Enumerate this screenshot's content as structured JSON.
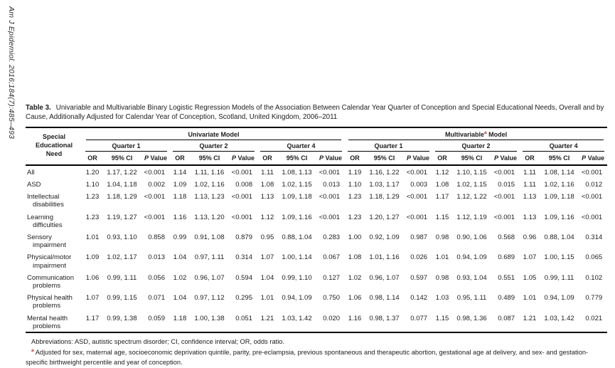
{
  "page": {
    "background_color": "#ffffff",
    "text_color": "#1c1c1c",
    "footnote_marker_color": "#a93226"
  },
  "sidebar": {
    "citation": "Am J Epidemiol. 2016;184(7):485–493"
  },
  "table": {
    "label": "Table 3.",
    "title": "Univariable and Multivariable Binary Logistic Regression Models of the Association Between Calendar Year Quarter of Conception and Special Educational Needs, Overall and by Cause, Additionally Adjusted for Calendar Year of Conception, Scotland, United Kingdom, 2006–2011",
    "stub_header": "Special Educational Need",
    "model_headers": [
      {
        "text": "Univariate Model",
        "sup": "",
        "text_after": ""
      },
      {
        "text": "Multivariable",
        "sup": "a",
        "text_after": " Model"
      }
    ],
    "quarter_headers": [
      "Quarter 1",
      "Quarter 2",
      "Quarter 4"
    ],
    "column_headers": [
      {
        "label": "OR",
        "italic_first_word": false
      },
      {
        "label": "95% CI",
        "italic_first_word": false
      },
      {
        "label": "P Value",
        "italic_first_word": true
      }
    ],
    "rows": [
      {
        "label": "All",
        "values": [
          "1.20",
          "1.17, 1.22",
          "<0.001",
          "1.14",
          "1.11, 1.16",
          "<0.001",
          "1.11",
          "1.08, 1.13",
          "<0.001",
          "1.19",
          "1.16, 1.22",
          "<0.001",
          "1.12",
          "1.10, 1.15",
          "<0.001",
          "1.11",
          "1.08, 1.14",
          "<0.001"
        ]
      },
      {
        "label": "ASD",
        "values": [
          "1.10",
          "1.04, 1.18",
          "0.002",
          "1.09",
          "1.02, 1.16",
          "0.008",
          "1.08",
          "1.02, 1.15",
          "0.013",
          "1.10",
          "1.03, 1.17",
          "0.003",
          "1.08",
          "1.02, 1.15",
          "0.015",
          "1.11",
          "1.02, 1.16",
          "0.012"
        ]
      },
      {
        "label": "Intellectual disabilities",
        "values": [
          "1.23",
          "1.18, 1.29",
          "<0.001",
          "1.18",
          "1.13, 1.23",
          "<0.001",
          "1.13",
          "1.09, 1.18",
          "<0.001",
          "1.23",
          "1.18, 1.29",
          "<0.001",
          "1.17",
          "1.12, 1.22",
          "<0.001",
          "1.13",
          "1.09, 1.18",
          "<0.001"
        ]
      },
      {
        "label": "Learning difficulties",
        "values": [
          "1.23",
          "1.19, 1.27",
          "<0.001",
          "1.16",
          "1.13, 1.20",
          "<0.001",
          "1.12",
          "1.09, 1.16",
          "<0.001",
          "1.23",
          "1.20, 1.27",
          "<0.001",
          "1.15",
          "1.12, 1.19",
          "<0.001",
          "1.13",
          "1.09, 1.16",
          "<0.001"
        ]
      },
      {
        "label": "Sensory impairment",
        "values": [
          "1.01",
          "0.93, 1.10",
          "0.858",
          "0.99",
          "0.91, 1.08",
          "0.879",
          "0.95",
          "0.88, 1.04",
          "0.283",
          "1.00",
          "0.92, 1.09",
          "0.987",
          "0.98",
          "0.90, 1.06",
          "0.568",
          "0.96",
          "0.88, 1.04",
          "0.314"
        ]
      },
      {
        "label": "Physical/motor impairment",
        "values": [
          "1.09",
          "1.02, 1.17",
          "0.013",
          "1.04",
          "0.97, 1.11",
          "0.314",
          "1.07",
          "1.00, 1.14",
          "0.067",
          "1.08",
          "1.01, 1.16",
          "0.026",
          "1.01",
          "0.94, 1.09",
          "0.689",
          "1.07",
          "1.00, 1.15",
          "0.065"
        ]
      },
      {
        "label": "Communication problems",
        "values": [
          "1.06",
          "0.99, 1.11",
          "0.056",
          "1.02",
          "0.96, 1.07",
          "0.594",
          "1.04",
          "0.99, 1.10",
          "0.127",
          "1.02",
          "0.96, 1.07",
          "0.597",
          "0.98",
          "0.93, 1.04",
          "0.551",
          "1.05",
          "0.99, 1.11",
          "0.102"
        ]
      },
      {
        "label": "Physical health problems",
        "values": [
          "1.07",
          "0.99, 1.15",
          "0.071",
          "1.04",
          "0.97, 1.12",
          "0.295",
          "1.01",
          "0.94, 1.09",
          "0.750",
          "1.06",
          "0.98, 1.14",
          "0.142",
          "1.03",
          "0.95, 1.11",
          "0.489",
          "1.01",
          "0.94, 1.09",
          "0.779"
        ]
      },
      {
        "label": "Mental health problems",
        "values": [
          "1.17",
          "0.99, 1.38",
          "0.059",
          "1.18",
          "1.00, 1.38",
          "0.051",
          "1.21",
          "1.03, 1.42",
          "0.020",
          "1.16",
          "0.98, 1.37",
          "0.077",
          "1.15",
          "0.98, 1.36",
          "0.087",
          "1.21",
          "1.03, 1.42",
          "0.021"
        ]
      }
    ]
  },
  "footnotes": {
    "abbreviations": "Abbreviations: ASD, autistic spectrum disorder; CI, confidence interval; OR, odds ratio.",
    "adjustment_sup": "a",
    "adjustment": "Adjusted for sex, maternal age, socioeconomic deprivation quintile, parity, pre-eclampsia, previous spontaneous and therapeutic abortion, gestational age at delivery, and sex- and gestation-specific birthweight percentile and year of conception."
  }
}
